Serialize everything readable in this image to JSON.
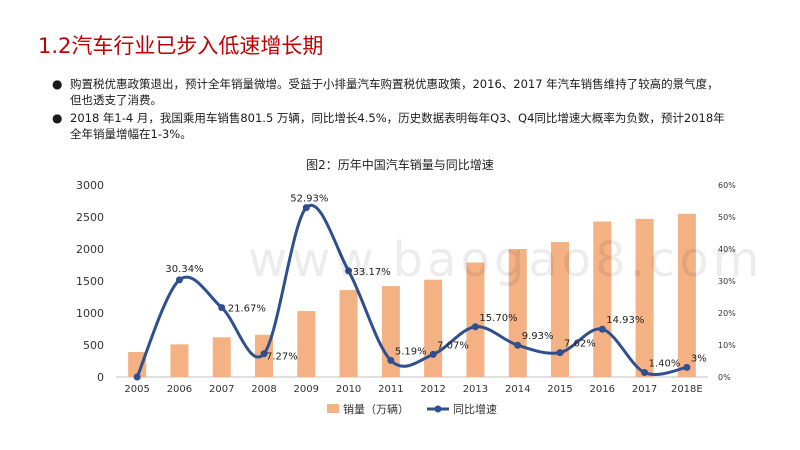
{
  "page": {
    "title": "1.2汽车行业已步入低速增长期",
    "bullets": [
      "购置税优惠政策退出，预计全年销量微增。受益于小排量汽车购置税优惠政策，2016、2017 年汽车销售维持了较高的景气度，但也透支了消费。",
      "2018 年1-4 月，我国乘用车销售801.5 万辆，同比增长4.5%，历史数据表明每年Q3、Q4同比增速大概率为负数，预计2018年全年销量增幅在1-3%。"
    ],
    "bullet_symbol": "●",
    "watermark": "www.baogao8.com"
  },
  "chart_data": {
    "type": "bar+line",
    "title": "图2：历年中国汽车销量与同比增速",
    "categories": [
      "2005",
      "2006",
      "2007",
      "2008",
      "2009",
      "2010",
      "2011",
      "2012",
      "2013",
      "2014",
      "2015",
      "2016",
      "2017",
      "2018E"
    ],
    "series": [
      {
        "name": "销量（万辆）",
        "type": "bar",
        "axis": "left",
        "color": "#f4b183",
        "values": [
          390,
          510,
          620,
          660,
          1030,
          1360,
          1420,
          1520,
          1790,
          2000,
          2110,
          2430,
          2470,
          2550
        ]
      },
      {
        "name": "同比增速",
        "type": "line",
        "axis": "right",
        "color": "#2f4f8f",
        "values": [
          0.0,
          30.34,
          21.67,
          7.27,
          52.93,
          33.17,
          5.19,
          7.07,
          15.7,
          9.93,
          7.62,
          14.93,
          1.4,
          3.0
        ],
        "labels": [
          "",
          "30.34%",
          "21.67%",
          "7.27%",
          "52.93%",
          "33.17%",
          "5.19%",
          "7.07%",
          "15.70%",
          "9.93%",
          "7.62%",
          "14.93%",
          "1.40%",
          "3%"
        ]
      }
    ],
    "y_left": {
      "min": 0,
      "max": 3000,
      "ticks": [
        "0",
        "500",
        "1000",
        "1500",
        "2000",
        "2500",
        "3000"
      ]
    },
    "y_right": {
      "min": 0,
      "max": 60,
      "ticks": [
        "0%",
        "10%",
        "20%",
        "30%",
        "40%",
        "50%",
        "60%"
      ]
    },
    "legend": {
      "position": "bottom",
      "items": [
        "销量（万辆）",
        "同比增速"
      ]
    },
    "grid": false
  }
}
